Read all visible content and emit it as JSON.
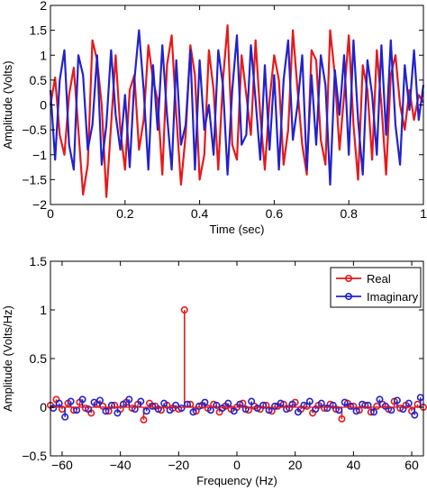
{
  "chart_data": [
    {
      "type": "line",
      "title": "",
      "xlabel": "Time (sec)",
      "ylabel": "Amplitude (Volts)",
      "xlim": [
        0,
        1
      ],
      "ylim": [
        -2,
        2
      ],
      "xticks": [
        0,
        0.2,
        0.4,
        0.6,
        0.8,
        1
      ],
      "yticks": [
        -2,
        -1.5,
        -1,
        -0.5,
        0,
        0.5,
        1,
        1.5,
        2
      ],
      "xtick_labels": [
        "0",
        "0.2",
        "0.4",
        "0.6",
        "0.8",
        "1"
      ],
      "ytick_labels": [
        "−2",
        "−1.5",
        "−1",
        "−0.5",
        "0",
        "0.5",
        "1",
        "1.5",
        "2"
      ],
      "grid": false,
      "series": [
        {
          "color": "#e41a1c",
          "x": [
            0,
            0.0125,
            0.025,
            0.0375,
            0.05,
            0.0625,
            0.075,
            0.0875,
            0.1,
            0.1125,
            0.125,
            0.1375,
            0.15,
            0.1625,
            0.175,
            0.1875,
            0.2,
            0.2125,
            0.225,
            0.2375,
            0.25,
            0.2625,
            0.275,
            0.2875,
            0.3,
            0.3125,
            0.325,
            0.3375,
            0.35,
            0.3625,
            0.375,
            0.3875,
            0.4,
            0.4125,
            0.425,
            0.4375,
            0.45,
            0.4625,
            0.475,
            0.4875,
            0.5,
            0.5125,
            0.525,
            0.5375,
            0.55,
            0.5625,
            0.575,
            0.5875,
            0.6,
            0.6125,
            0.625,
            0.6375,
            0.65,
            0.6625,
            0.675,
            0.6875,
            0.7,
            0.7125,
            0.725,
            0.7375,
            0.75,
            0.7625,
            0.775,
            0.7875,
            0.8,
            0.8125,
            0.825,
            0.8375,
            0.85,
            0.8625,
            0.875,
            0.8875,
            0.9,
            0.9125,
            0.925,
            0.9375,
            0.95,
            0.9625,
            0.975,
            0.9875,
            1
          ],
          "y": [
            0,
            0.55,
            -0.6,
            -1.0,
            0.2,
            0.75,
            -0.5,
            -1.8,
            -1.2,
            1.3,
            0.9,
            0.0,
            -1.85,
            -0.4,
            1.0,
            -0.5,
            -1.3,
            0.3,
            0.6,
            -0.9,
            -0.3,
            1.2,
            0.5,
            0.1,
            -1.4,
            0.8,
            1.4,
            -0.2,
            -1.6,
            -0.6,
            1.2,
            0.6,
            -1.5,
            -1.0,
            1.1,
            0.3,
            -1.3,
            0.5,
            1.6,
            -0.8,
            -1.1,
            1.0,
            0.2,
            -0.6,
            1.3,
            -0.2,
            -1.3,
            0.1,
            1.0,
            0.5,
            -1.2,
            -0.5,
            1.5,
            0.3,
            -0.8,
            -1.4,
            1.1,
            0.9,
            -0.7,
            -1.2,
            1.5,
            0.6,
            -0.9,
            0.2,
            1.4,
            -0.4,
            -1.5,
            0.8,
            0.3,
            -1.1,
            1.1,
            0.0,
            -1.4,
            0.6,
            1.0,
            0.0,
            -0.5,
            0.3,
            -0.3,
            0.2,
            0.05
          ]
        },
        {
          "color": "#2222cc",
          "x": [
            0,
            0.0125,
            0.025,
            0.0375,
            0.05,
            0.0625,
            0.075,
            0.0875,
            0.1,
            0.1125,
            0.125,
            0.1375,
            0.15,
            0.1625,
            0.175,
            0.1875,
            0.2,
            0.2125,
            0.225,
            0.2375,
            0.25,
            0.2625,
            0.275,
            0.2875,
            0.3,
            0.3125,
            0.325,
            0.3375,
            0.35,
            0.3625,
            0.375,
            0.3875,
            0.4,
            0.4125,
            0.425,
            0.4375,
            0.45,
            0.4625,
            0.475,
            0.4875,
            0.5,
            0.5125,
            0.525,
            0.5375,
            0.55,
            0.5625,
            0.575,
            0.5875,
            0.6,
            0.6125,
            0.625,
            0.6375,
            0.65,
            0.6625,
            0.675,
            0.6875,
            0.7,
            0.7125,
            0.725,
            0.7375,
            0.75,
            0.7625,
            0.775,
            0.7875,
            0.8,
            0.8125,
            0.825,
            0.8375,
            0.85,
            0.8625,
            0.875,
            0.8875,
            0.9,
            0.9125,
            0.925,
            0.9375,
            0.95,
            0.9625,
            0.975,
            0.9875,
            1
          ],
          "y": [
            0.3,
            -1.1,
            0.5,
            1.1,
            -0.8,
            -1.3,
            1.0,
            0.6,
            -0.9,
            -0.4,
            1.0,
            -1.2,
            -0.4,
            1.1,
            -0.2,
            -0.9,
            0.2,
            -1.25,
            0.5,
            1.5,
            0.3,
            -1.3,
            0.8,
            -0.5,
            1.2,
            -0.2,
            -1.3,
            0.9,
            -0.8,
            -0.4,
            1.1,
            -1.3,
            0.9,
            -0.5,
            0.0,
            -1.0,
            1.1,
            0.4,
            -1.4,
            0.3,
            1.4,
            -0.8,
            -0.6,
            1.2,
            0.1,
            -1.1,
            0.8,
            -0.9,
            0.6,
            -1.3,
            0.5,
            1.3,
            -0.7,
            0.0,
            1.0,
            -1.3,
            0.6,
            -0.8,
            1.0,
            0.4,
            -1.6,
            0.7,
            -0.2,
            1.0,
            -1.0,
            1.3,
            -0.3,
            -1.4,
            0.9,
            0.2,
            -1.0,
            1.2,
            -0.6,
            1.3,
            -0.4,
            -1.2,
            0.8,
            -0.1,
            1.1,
            -0.3,
            0.4
          ]
        }
      ]
    },
    {
      "type": "stem",
      "title": "",
      "xlabel": "Frequency (Hz)",
      "ylabel": "Amplitude (Volts/Hz)",
      "xlim": [
        -64,
        64
      ],
      "ylim": [
        -0.5,
        1.5
      ],
      "xticks": [
        -60,
        -40,
        -20,
        0,
        20,
        40,
        60
      ],
      "yticks": [
        -0.5,
        0,
        0.5,
        1,
        1.5
      ],
      "xtick_labels": [
        "−60",
        "−40",
        "−20",
        "0",
        "20",
        "40",
        "60"
      ],
      "ytick_labels": [
        "−0.5",
        "0",
        "0.5",
        "1",
        "1.5"
      ],
      "grid": false,
      "legend_position": "top-right",
      "series": [
        {
          "name": "Real",
          "color": "#e41a1c",
          "x": [
            -64,
            -62,
            -60,
            -58,
            -56,
            -54,
            -52,
            -50,
            -48,
            -46,
            -44,
            -42,
            -40,
            -38,
            -36,
            -34,
            -32,
            -30,
            -28,
            -26,
            -24,
            -22,
            -20,
            -18,
            -16,
            -14,
            -12,
            -10,
            -8,
            -6,
            -4,
            -2,
            0,
            2,
            4,
            6,
            8,
            10,
            12,
            14,
            16,
            18,
            20,
            22,
            24,
            26,
            28,
            30,
            32,
            34,
            36,
            38,
            40,
            42,
            44,
            46,
            48,
            50,
            52,
            54,
            56,
            58,
            60,
            62,
            64
          ],
          "y": [
            0.02,
            0.08,
            -0.02,
            0.04,
            -0.03,
            0.05,
            -0.01,
            -0.06,
            0.03,
            0.01,
            -0.04,
            0.02,
            -0.02,
            0.05,
            -0.01,
            0.03,
            -0.13,
            0.04,
            0.01,
            -0.03,
            0.02,
            -0.01,
            -0.02,
            1.0,
            0.03,
            -0.04,
            0.02,
            -0.01,
            0.03,
            -0.05,
            0.01,
            -0.02,
            0.0,
            0.04,
            -0.03,
            0.01,
            -0.02,
            0.02,
            -0.04,
            0.01,
            0.03,
            -0.01,
            0.05,
            -0.02,
            0.01,
            -0.06,
            0.02,
            -0.01,
            0.03,
            -0.02,
            -0.12,
            0.04,
            0.01,
            -0.03,
            0.02,
            -0.05,
            0.01,
            0.03,
            -0.02,
            0.06,
            -0.01,
            0.02,
            -0.04,
            0.03,
            0.0
          ]
        },
        {
          "name": "Imaginary",
          "color": "#2222cc",
          "x": [
            -63,
            -61,
            -59,
            -57,
            -55,
            -53,
            -51,
            -49,
            -47,
            -45,
            -43,
            -41,
            -39,
            -37,
            -35,
            -33,
            -31,
            -29,
            -27,
            -25,
            -23,
            -21,
            -19,
            -17,
            -15,
            -13,
            -11,
            -9,
            -7,
            -5,
            -3,
            -1,
            1,
            3,
            5,
            7,
            9,
            11,
            13,
            15,
            17,
            19,
            21,
            23,
            25,
            27,
            29,
            31,
            33,
            35,
            37,
            39,
            41,
            43,
            45,
            47,
            49,
            51,
            53,
            55,
            57,
            59,
            61,
            63
          ],
          "y": [
            -0.01,
            0.04,
            -0.1,
            0.06,
            -0.03,
            0.08,
            -0.02,
            0.05,
            0.07,
            -0.04,
            0.02,
            -0.06,
            0.03,
            0.08,
            -0.02,
            0.06,
            -0.04,
            0.01,
            -0.02,
            0.04,
            -0.03,
            0.02,
            -0.01,
            0.03,
            -0.05,
            0.01,
            0.05,
            -0.03,
            0.02,
            -0.01,
            0.04,
            -0.04,
            0.03,
            -0.02,
            0.06,
            -0.01,
            0.02,
            -0.03,
            0.01,
            0.04,
            -0.02,
            0.03,
            -0.05,
            0.02,
            0.06,
            -0.02,
            0.04,
            -0.01,
            0.02,
            -0.03,
            0.05,
            0.01,
            -0.04,
            0.03,
            0.02,
            -0.05,
            0.08,
            0.01,
            -0.03,
            0.07,
            -0.02,
            0.04,
            -0.08,
            0.1
          ]
        }
      ]
    }
  ]
}
